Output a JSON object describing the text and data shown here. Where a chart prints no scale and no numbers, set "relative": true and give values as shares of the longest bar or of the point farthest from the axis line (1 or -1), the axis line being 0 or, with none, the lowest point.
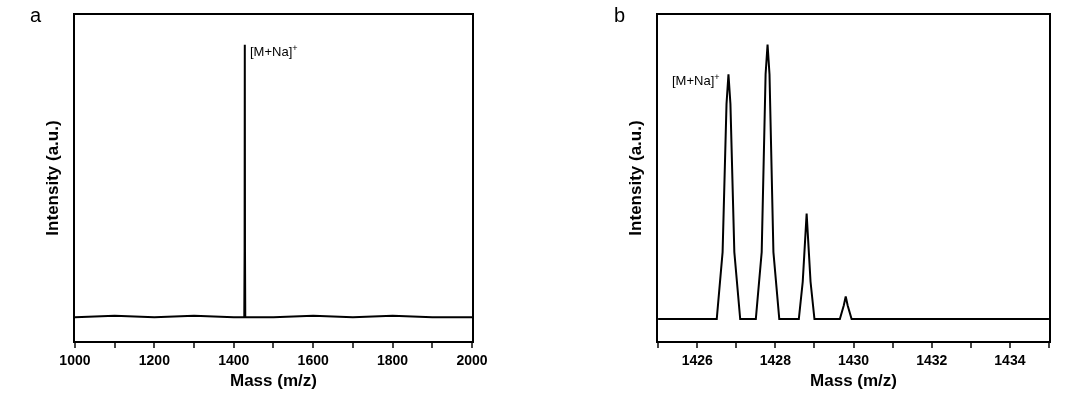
{
  "chart_data": [
    {
      "type": "line",
      "title": "a",
      "xlabel": "Mass (m/z)",
      "ylabel": "Intensity (a.u.)",
      "relative": true,
      "xlim": [
        1000,
        2000
      ],
      "xticks": [
        1000,
        {
          "value": 1100,
          "label": null
        },
        1200,
        {
          "value": 1300,
          "label": null
        },
        1400,
        {
          "value": 1500,
          "label": null
        },
        1600,
        {
          "value": 1700,
          "label": null
        },
        1800,
        {
          "value": 1900,
          "label": null
        },
        2000
      ],
      "tick_labels": "x",
      "marker": "none",
      "line_style": "solid",
      "series": [
        {
          "color": "#000000",
          "x": [
            1000,
            1100,
            1200,
            1300,
            1400,
            1426.5,
            1427.3,
            1427.8,
            1428.3,
            1429,
            1500,
            1600,
            1700,
            1800,
            1900,
            2000
          ],
          "values": [
            0.08,
            0.085,
            0.08,
            0.085,
            0.08,
            0.08,
            0.3,
            1.0,
            0.3,
            0.08,
            0.08,
            0.085,
            0.08,
            0.085,
            0.08,
            0.08
          ]
        }
      ],
      "annotations": [
        "[M+Na]$^{+}$"
      ]
    },
    {
      "type": "line",
      "title": "b",
      "xlabel": "Mass (m/z)",
      "ylabel": "Intensity (a.u.)",
      "relative": true,
      "xlim": [
        1425,
        1435
      ],
      "xticks": [
        {
          "value": 1425,
          "label": null
        },
        1426,
        {
          "value": 1427,
          "label": null
        },
        1428,
        {
          "value": 1429,
          "label": null
        },
        1430,
        {
          "value": 1431,
          "label": null
        },
        1432,
        {
          "value": 1433,
          "label": null
        },
        1434,
        {
          "value": 1435,
          "label": null
        }
      ],
      "tick_labels": "x",
      "marker": "none",
      "line_style": "solid",
      "series": [
        {
          "color": "#000000",
          "x": [
            1425,
            1426.5,
            1426.65,
            1426.75,
            1426.8,
            1426.85,
            1426.95,
            1427.1,
            1427.5,
            1427.65,
            1427.75,
            1427.8,
            1427.85,
            1427.95,
            1428.1,
            1428.6,
            1428.7,
            1428.8,
            1428.9,
            1429.0,
            1429.65,
            1429.75,
            1429.8,
            1429.85,
            1429.95,
            1435
          ],
          "values": [
            0.074,
            0.074,
            0.3,
            0.8,
            0.9,
            0.8,
            0.3,
            0.074,
            0.074,
            0.3,
            0.9,
            1.0,
            0.9,
            0.3,
            0.074,
            0.074,
            0.2,
            0.43,
            0.2,
            0.074,
            0.074,
            0.12,
            0.15,
            0.12,
            0.074,
            0.074
          ]
        }
      ],
      "annotations": [
        "[M+Na]$^{+}$"
      ]
    }
  ]
}
